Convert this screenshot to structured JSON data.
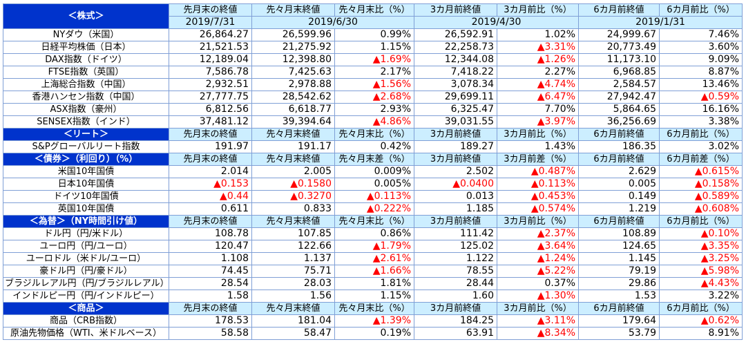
{
  "sections": [
    {
      "title": "＜株式＞",
      "headers": [
        "先月末の終値",
        "先々月末終値",
        "先々月末比（%）",
        "3カ月前終値",
        "3カ月前比（%）",
        "6カ月前終値",
        "6カ月前比（%）"
      ],
      "dates": [
        "2019/7/31",
        "2019/6/30",
        "2019/4/30",
        "2019/1/31"
      ],
      "rows": [
        {
          "label": "NYダウ（米国）",
          "values": [
            "26,864.27",
            "26,599.96",
            "0.99%",
            "26,592.91",
            "1.02%",
            "24,999.67",
            "7.46%"
          ]
        },
        {
          "label": "日経平均株価（日本）",
          "values": [
            "21,521.53",
            "21,275.92",
            "1.15%",
            "22,258.73",
            "▲3.31%",
            "20,773.49",
            "3.60%"
          ]
        },
        {
          "label": "DAX指数（ドイツ）",
          "values": [
            "12,189.04",
            "12,398.80",
            "▲1.69%",
            "12,344.08",
            "▲1.26%",
            "11,173.10",
            "9.09%"
          ]
        },
        {
          "label": "FTSE指数（英国）",
          "values": [
            "7,586.78",
            "7,425.63",
            "2.17%",
            "7,418.22",
            "2.27%",
            "6,968.85",
            "8.87%"
          ]
        },
        {
          "label": "上海総合指数（中国）",
          "values": [
            "2,932.51",
            "2,978.88",
            "▲1.56%",
            "3,078.34",
            "▲4.74%",
            "2,584.57",
            "13.46%"
          ]
        },
        {
          "label": "香港ハンセン指数（中国）",
          "values": [
            "27,777.75",
            "28,542.62",
            "▲2.68%",
            "29,699.11",
            "▲6.47%",
            "27,942.47",
            "▲0.59%"
          ]
        },
        {
          "label": "ASX指数（豪州）",
          "values": [
            "6,812.56",
            "6,618.77",
            "2.93%",
            "6,325.47",
            "7.70%",
            "5,864.65",
            "16.16%"
          ]
        },
        {
          "label": "SENSEX指数（インド）",
          "values": [
            "37,481.12",
            "39,394.64",
            "▲4.86%",
            "39,031.55",
            "▲3.97%",
            "36,256.69",
            "3.38%"
          ]
        }
      ]
    },
    {
      "title": "＜リート＞",
      "headers": [
        "先月末の終値",
        "先々月末終値",
        "先々月末比（%）",
        "3カ月前終値",
        "3カ月前比（%）",
        "6カ月前終値",
        "6カ月前比（%）"
      ],
      "rows": [
        {
          "label": "S&Pグローバルリート指数",
          "values": [
            "191.97",
            "191.17",
            "0.42%",
            "189.27",
            "1.43%",
            "186.35",
            "3.02%"
          ]
        }
      ]
    },
    {
      "title": "＜債券＞（利回り）（%）",
      "headers": [
        "先月末の終値",
        "先々月末終値",
        "先々月末差（%）",
        "3カ月前終値",
        "3カ月前差（%）",
        "6カ月前終値",
        "6カ月前差（%）"
      ],
      "rows": [
        {
          "label": "米国10年国債",
          "values": [
            "2.014",
            "2.005",
            "0.009%",
            "2.502",
            "▲0.487%",
            "2.629",
            "▲0.615%"
          ]
        },
        {
          "label": "日本10年国債",
          "values": [
            "▲0.153",
            "▲0.1580",
            "0.005%",
            "▲0.0400",
            "▲0.113%",
            "0.005",
            "▲0.158%"
          ]
        },
        {
          "label": "ドイツ10年国債",
          "values": [
            "▲0.44",
            "▲0.3270",
            "▲0.113%",
            "0.013",
            "▲0.453%",
            "0.149",
            "▲0.589%"
          ]
        },
        {
          "label": "英国10年国債",
          "values": [
            "0.611",
            "0.833",
            "▲0.222%",
            "1.185",
            "▲0.574%",
            "1.219",
            "▲0.608%"
          ]
        }
      ]
    },
    {
      "title": "＜為替＞（NY時間引け値）",
      "headers": [
        "先月末の終値",
        "先々月末終値",
        "先々月末比（%）",
        "3カ月前終値",
        "3カ月前比（%）",
        "6カ月前終値",
        "6カ月前比（%）"
      ],
      "rows": [
        {
          "label": "ドル円（円/米ドル）",
          "values": [
            "108.78",
            "107.85",
            "0.86%",
            "111.42",
            "▲2.37%",
            "108.89",
            "▲0.10%"
          ]
        },
        {
          "label": "ユーロ円（円/ユーロ）",
          "values": [
            "120.47",
            "122.66",
            "▲1.79%",
            "125.02",
            "▲3.64%",
            "124.65",
            "▲3.35%"
          ]
        },
        {
          "label": "ユーロドル（米ドル/ユーロ）",
          "values": [
            "1.108",
            "1.137",
            "▲2.61%",
            "1.122",
            "▲1.24%",
            "1.145",
            "▲3.25%"
          ]
        },
        {
          "label": "豪ドル円（円/豪ドル）",
          "values": [
            "74.45",
            "75.71",
            "▲1.66%",
            "78.55",
            "▲5.22%",
            "79.19",
            "▲5.98%"
          ]
        },
        {
          "label": "ブラジルレアル円（円/ブラジルレアル）",
          "values": [
            "28.54",
            "28.03",
            "1.81%",
            "28.44",
            "0.37%",
            "29.86",
            "▲4.43%"
          ]
        },
        {
          "label": "インドルピー円（円/インドルピー）",
          "values": [
            "1.58",
            "1.56",
            "1.15%",
            "1.60",
            "▲1.30%",
            "1.53",
            "3.22%"
          ]
        }
      ]
    },
    {
      "title": "＜商品＞",
      "headers": [
        "先月末の終値",
        "先々月末終値",
        "先々月末比（%）",
        "3カ月前終値",
        "3カ月前比（%）",
        "6カ月前終値",
        "6カ月前比（%）"
      ],
      "rows": [
        {
          "label": "商品（CRB指数）",
          "values": [
            "178.53",
            "181.04",
            "▲1.39%",
            "184.25",
            "▲3.11%",
            "179.64",
            "▲0.62%"
          ]
        },
        {
          "label": "原油先物価格（WTI、米ドルベース）",
          "values": [
            "58.58",
            "58.47",
            "0.19%",
            "63.91",
            "▲8.34%",
            "53.79",
            "8.91%"
          ]
        }
      ]
    }
  ]
}
